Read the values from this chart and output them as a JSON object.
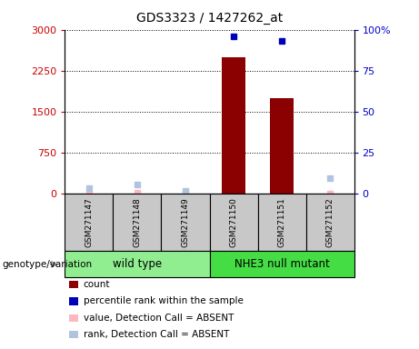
{
  "title": "GDS3323 / 1427262_at",
  "samples": [
    "GSM271147",
    "GSM271148",
    "GSM271149",
    "GSM271150",
    "GSM271151",
    "GSM271152"
  ],
  "count_values": [
    null,
    null,
    null,
    2500,
    1750,
    null
  ],
  "percentile_rank_values": [
    null,
    null,
    null,
    96,
    93,
    null
  ],
  "absent_value_values": [
    8,
    18,
    8,
    null,
    null,
    8
  ],
  "absent_rank_values": [
    3.5,
    5.5,
    1.8,
    null,
    null,
    9.5
  ],
  "bar_color": "#8B0000",
  "dot_color": "#0000BB",
  "absent_value_color": "#FFB6C1",
  "absent_rank_color": "#B0C4DE",
  "ylim_left": [
    0,
    3000
  ],
  "ylim_right": [
    0,
    100
  ],
  "yticks_left": [
    0,
    750,
    1500,
    2250,
    3000
  ],
  "ytick_labels_left": [
    "0",
    "750",
    "1500",
    "2250",
    "3000"
  ],
  "yticks_right": [
    0,
    25,
    50,
    75,
    100
  ],
  "ytick_labels_right": [
    "0",
    "25",
    "50",
    "75",
    "100%"
  ],
  "left_tick_color": "#CC0000",
  "right_tick_color": "#0000CC",
  "group_wt_color": "#90EE90",
  "group_mut_color": "#44DD44",
  "sample_box_color": "#C8C8C8",
  "genotype_label": "genotype/variation",
  "legend_items": [
    {
      "label": "count",
      "color": "#8B0000"
    },
    {
      "label": "percentile rank within the sample",
      "color": "#0000BB"
    },
    {
      "label": "value, Detection Call = ABSENT",
      "color": "#FFB6C1"
    },
    {
      "label": "rank, Detection Call = ABSENT",
      "color": "#B0C4DE"
    }
  ]
}
